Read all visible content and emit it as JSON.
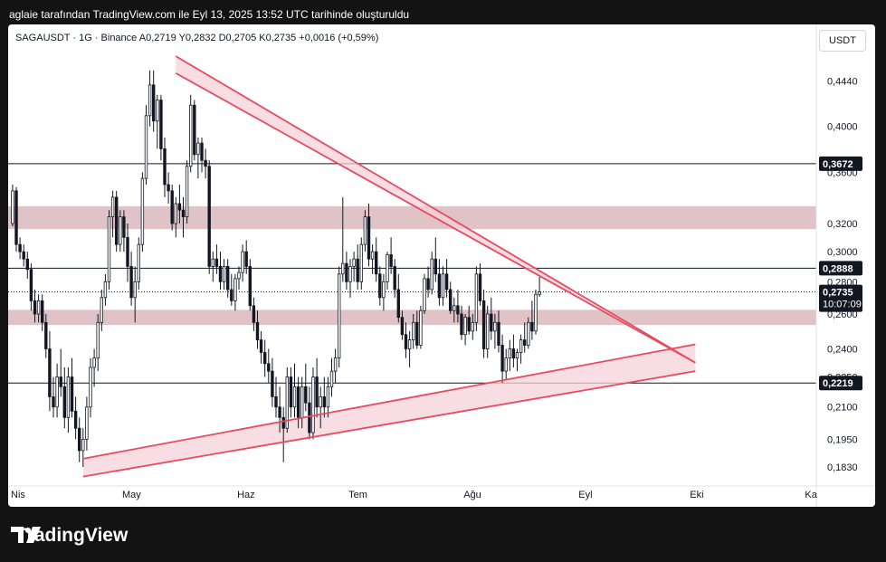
{
  "caption": "aglaie tarafından TradingView.com ile Eyl 13, 2025 13:52 UTC tarihinde oluşturuldu",
  "symbol_info": "SAGAUSDT · 1G · Binance   A0,2719   Y0,2832   D0,2705   K0,2735   +0,0016 (+0,59%)",
  "currency": "USDT",
  "brand": "TradingView",
  "colors": {
    "up": "#26a69a",
    "down": "#ef5350",
    "candle": "#131722",
    "zone_fill": "#d9b9bd",
    "triangle_line": "#e84a5f",
    "triangle_fill": "#f6d3d8",
    "level_line": "#131722"
  },
  "chart_data": {
    "type": "candlestick",
    "y_scale": "log",
    "ylim": [
      0.177,
      0.475
    ],
    "y_ticks": [
      "0,4440",
      "0,4000",
      "0,3600",
      "0,3200",
      "0,3000",
      "0,2800",
      "0,2600",
      "0,2400",
      "0,2250",
      "0,2100",
      "0,1950",
      "0,1830"
    ],
    "y_tick_values": [
      0.444,
      0.4,
      0.36,
      0.32,
      0.3,
      0.28,
      0.26,
      0.24,
      0.225,
      0.21,
      0.195,
      0.183
    ],
    "x_ticks": [
      "Nis",
      "May",
      "Haz",
      "Tem",
      "Ağu",
      "Eyl",
      "Eki",
      "Ka"
    ],
    "x_tick_days": [
      0,
      30,
      61,
      91,
      122,
      153,
      183,
      214
    ],
    "levels": [
      {
        "label": "0,3672",
        "value": 0.3672
      },
      {
        "label": "0,2888",
        "value": 0.2888
      },
      {
        "label": "0,2219",
        "value": 0.2219
      }
    ],
    "current_price": {
      "label": "0,2735",
      "value": 0.2735,
      "countdown": "10:07:09"
    },
    "zones": [
      {
        "low": 0.316,
        "high": 0.333
      },
      {
        "low": 0.2535,
        "high": 0.2625
      }
    ],
    "triangle": {
      "upper_top": [
        [
          43,
          0.47
        ],
        [
          183,
          0.2325
        ]
      ],
      "upper_bottom": [
        [
          43,
          0.452
        ],
        [
          183,
          0.2325
        ]
      ],
      "lower_top": [
        [
          18,
          0.1865
        ],
        [
          183,
          0.2425
        ]
      ],
      "lower_bottom": [
        [
          18,
          0.179
        ],
        [
          183,
          0.228
        ]
      ]
    },
    "candles": [
      [
        -1,
        0.32,
        0.35,
        0.318,
        0.345
      ],
      [
        0,
        0.345,
        0.348,
        0.3,
        0.305
      ],
      [
        1,
        0.305,
        0.31,
        0.295,
        0.3
      ],
      [
        2,
        0.3,
        0.305,
        0.29,
        0.295
      ],
      [
        3,
        0.295,
        0.3,
        0.282,
        0.288
      ],
      [
        4,
        0.288,
        0.292,
        0.262,
        0.268
      ],
      [
        5,
        0.268,
        0.275,
        0.255,
        0.26
      ],
      [
        6,
        0.26,
        0.272,
        0.255,
        0.268
      ],
      [
        7,
        0.268,
        0.272,
        0.25,
        0.255
      ],
      [
        8,
        0.255,
        0.26,
        0.235,
        0.24
      ],
      [
        9,
        0.24,
        0.25,
        0.208,
        0.215
      ],
      [
        10,
        0.215,
        0.225,
        0.205,
        0.21
      ],
      [
        11,
        0.21,
        0.232,
        0.205,
        0.225
      ],
      [
        12,
        0.225,
        0.24,
        0.215,
        0.22
      ],
      [
        13,
        0.22,
        0.23,
        0.2,
        0.205
      ],
      [
        14,
        0.205,
        0.23,
        0.198,
        0.225
      ],
      [
        15,
        0.225,
        0.235,
        0.205,
        0.208
      ],
      [
        16,
        0.208,
        0.215,
        0.195,
        0.2
      ],
      [
        17,
        0.2,
        0.205,
        0.185,
        0.19
      ],
      [
        18,
        0.19,
        0.2,
        0.183,
        0.195
      ],
      [
        19,
        0.195,
        0.215,
        0.19,
        0.21
      ],
      [
        20,
        0.21,
        0.235,
        0.205,
        0.23
      ],
      [
        21,
        0.23,
        0.24,
        0.22,
        0.235
      ],
      [
        22,
        0.235,
        0.26,
        0.228,
        0.255
      ],
      [
        23,
        0.255,
        0.275,
        0.25,
        0.27
      ],
      [
        24,
        0.27,
        0.285,
        0.265,
        0.28
      ],
      [
        25,
        0.28,
        0.33,
        0.275,
        0.325
      ],
      [
        26,
        0.325,
        0.345,
        0.31,
        0.34
      ],
      [
        27,
        0.34,
        0.345,
        0.3,
        0.305
      ],
      [
        28,
        0.305,
        0.33,
        0.3,
        0.325
      ],
      [
        29,
        0.325,
        0.33,
        0.3,
        0.31
      ],
      [
        30,
        0.31,
        0.32,
        0.28,
        0.29
      ],
      [
        31,
        0.29,
        0.3,
        0.265,
        0.27
      ],
      [
        32,
        0.27,
        0.29,
        0.255,
        0.28
      ],
      [
        33,
        0.28,
        0.31,
        0.275,
        0.305
      ],
      [
        34,
        0.305,
        0.36,
        0.3,
        0.355
      ],
      [
        35,
        0.355,
        0.42,
        0.35,
        0.41
      ],
      [
        36,
        0.41,
        0.455,
        0.4,
        0.44
      ],
      [
        37,
        0.44,
        0.455,
        0.395,
        0.405
      ],
      [
        38,
        0.405,
        0.43,
        0.38,
        0.425
      ],
      [
        39,
        0.425,
        0.43,
        0.37,
        0.38
      ],
      [
        40,
        0.38,
        0.39,
        0.34,
        0.35
      ],
      [
        41,
        0.35,
        0.36,
        0.335,
        0.345
      ],
      [
        42,
        0.345,
        0.35,
        0.315,
        0.32
      ],
      [
        43,
        0.32,
        0.34,
        0.31,
        0.335
      ],
      [
        44,
        0.335,
        0.35,
        0.32,
        0.33
      ],
      [
        45,
        0.33,
        0.34,
        0.31,
        0.325
      ],
      [
        46,
        0.325,
        0.37,
        0.32,
        0.365
      ],
      [
        47,
        0.365,
        0.43,
        0.36,
        0.42
      ],
      [
        48,
        0.42,
        0.425,
        0.37,
        0.375
      ],
      [
        49,
        0.375,
        0.39,
        0.355,
        0.385
      ],
      [
        50,
        0.385,
        0.39,
        0.36,
        0.37
      ],
      [
        51,
        0.37,
        0.38,
        0.355,
        0.365
      ],
      [
        52,
        0.365,
        0.37,
        0.285,
        0.29
      ],
      [
        53,
        0.29,
        0.3,
        0.28,
        0.295
      ],
      [
        54,
        0.295,
        0.305,
        0.285,
        0.29
      ],
      [
        55,
        0.29,
        0.3,
        0.275,
        0.28
      ],
      [
        56,
        0.28,
        0.295,
        0.275,
        0.29
      ],
      [
        57,
        0.29,
        0.295,
        0.27,
        0.275
      ],
      [
        58,
        0.275,
        0.285,
        0.265,
        0.268
      ],
      [
        59,
        0.268,
        0.285,
        0.262,
        0.282
      ],
      [
        60,
        0.282,
        0.29,
        0.275,
        0.286
      ],
      [
        61,
        0.286,
        0.305,
        0.28,
        0.3
      ],
      [
        62,
        0.3,
        0.308,
        0.285,
        0.29
      ],
      [
        63,
        0.29,
        0.295,
        0.262,
        0.265
      ],
      [
        64,
        0.265,
        0.27,
        0.25,
        0.255
      ],
      [
        65,
        0.255,
        0.262,
        0.24,
        0.245
      ],
      [
        66,
        0.245,
        0.25,
        0.232,
        0.238
      ],
      [
        67,
        0.238,
        0.245,
        0.225,
        0.232
      ],
      [
        68,
        0.232,
        0.24,
        0.222,
        0.228
      ],
      [
        69,
        0.228,
        0.235,
        0.21,
        0.215
      ],
      [
        70,
        0.215,
        0.225,
        0.205,
        0.21
      ],
      [
        71,
        0.21,
        0.22,
        0.198,
        0.205
      ],
      [
        72,
        0.205,
        0.21,
        0.185,
        0.2
      ],
      [
        73,
        0.2,
        0.23,
        0.198,
        0.225
      ],
      [
        74,
        0.225,
        0.23,
        0.205,
        0.21
      ],
      [
        75,
        0.21,
        0.232,
        0.205,
        0.22
      ],
      [
        76,
        0.22,
        0.225,
        0.2,
        0.205
      ],
      [
        77,
        0.205,
        0.225,
        0.2,
        0.22
      ],
      [
        78,
        0.22,
        0.232,
        0.208,
        0.212
      ],
      [
        79,
        0.212,
        0.22,
        0.195,
        0.198
      ],
      [
        80,
        0.198,
        0.23,
        0.195,
        0.225
      ],
      [
        81,
        0.225,
        0.235,
        0.205,
        0.21
      ],
      [
        82,
        0.21,
        0.22,
        0.2,
        0.215
      ],
      [
        83,
        0.215,
        0.225,
        0.205,
        0.21
      ],
      [
        84,
        0.21,
        0.225,
        0.205,
        0.22
      ],
      [
        85,
        0.22,
        0.235,
        0.215,
        0.228
      ],
      [
        86,
        0.228,
        0.24,
        0.222,
        0.235
      ],
      [
        87,
        0.235,
        0.29,
        0.23,
        0.285
      ],
      [
        88,
        0.285,
        0.34,
        0.28,
        0.292
      ],
      [
        89,
        0.292,
        0.3,
        0.275,
        0.28
      ],
      [
        90,
        0.28,
        0.295,
        0.27,
        0.29
      ],
      [
        91,
        0.29,
        0.3,
        0.28,
        0.295
      ],
      [
        92,
        0.295,
        0.305,
        0.275,
        0.28
      ],
      [
        93,
        0.28,
        0.31,
        0.275,
        0.305
      ],
      [
        94,
        0.305,
        0.33,
        0.3,
        0.325
      ],
      [
        95,
        0.325,
        0.335,
        0.29,
        0.295
      ],
      [
        96,
        0.295,
        0.305,
        0.285,
        0.3
      ],
      [
        97,
        0.3,
        0.31,
        0.28,
        0.285
      ],
      [
        98,
        0.285,
        0.29,
        0.265,
        0.27
      ],
      [
        99,
        0.27,
        0.285,
        0.262,
        0.28
      ],
      [
        100,
        0.28,
        0.3,
        0.275,
        0.298
      ],
      [
        101,
        0.298,
        0.31,
        0.285,
        0.29
      ],
      [
        102,
        0.29,
        0.295,
        0.27,
        0.275
      ],
      [
        103,
        0.275,
        0.285,
        0.255,
        0.258
      ],
      [
        104,
        0.258,
        0.262,
        0.245,
        0.248
      ],
      [
        105,
        0.248,
        0.255,
        0.235,
        0.24
      ],
      [
        106,
        0.24,
        0.25,
        0.23,
        0.245
      ],
      [
        107,
        0.245,
        0.26,
        0.24,
        0.255
      ],
      [
        108,
        0.255,
        0.262,
        0.24,
        0.242
      ],
      [
        109,
        0.242,
        0.265,
        0.24,
        0.262
      ],
      [
        110,
        0.262,
        0.285,
        0.26,
        0.282
      ],
      [
        111,
        0.282,
        0.29,
        0.27,
        0.275
      ],
      [
        112,
        0.275,
        0.3,
        0.272,
        0.295
      ],
      [
        113,
        0.295,
        0.31,
        0.28,
        0.285
      ],
      [
        114,
        0.285,
        0.295,
        0.265,
        0.27
      ],
      [
        115,
        0.27,
        0.29,
        0.265,
        0.285
      ],
      [
        116,
        0.285,
        0.295,
        0.27,
        0.275
      ],
      [
        117,
        0.275,
        0.28,
        0.26,
        0.262
      ],
      [
        118,
        0.262,
        0.27,
        0.255,
        0.265
      ],
      [
        119,
        0.265,
        0.275,
        0.255,
        0.26
      ],
      [
        120,
        0.26,
        0.265,
        0.245,
        0.248
      ],
      [
        121,
        0.248,
        0.26,
        0.242,
        0.258
      ],
      [
        122,
        0.258,
        0.265,
        0.248,
        0.25
      ],
      [
        123,
        0.25,
        0.26,
        0.245,
        0.255
      ],
      [
        124,
        0.255,
        0.29,
        0.25,
        0.285
      ],
      [
        125,
        0.285,
        0.292,
        0.265,
        0.268
      ],
      [
        126,
        0.268,
        0.275,
        0.235,
        0.24
      ],
      [
        127,
        0.24,
        0.265,
        0.235,
        0.26
      ],
      [
        128,
        0.26,
        0.27,
        0.245,
        0.25
      ],
      [
        129,
        0.25,
        0.26,
        0.24,
        0.255
      ],
      [
        130,
        0.255,
        0.262,
        0.238,
        0.242
      ],
      [
        131,
        0.242,
        0.248,
        0.222,
        0.228
      ],
      [
        132,
        0.228,
        0.24,
        0.224,
        0.235
      ],
      [
        133,
        0.235,
        0.245,
        0.228,
        0.24
      ],
      [
        134,
        0.24,
        0.248,
        0.23,
        0.235
      ],
      [
        135,
        0.235,
        0.24,
        0.228,
        0.238
      ],
      [
        136,
        0.238,
        0.248,
        0.232,
        0.245
      ],
      [
        137,
        0.245,
        0.255,
        0.238,
        0.242
      ],
      [
        138,
        0.242,
        0.258,
        0.24,
        0.255
      ],
      [
        139,
        0.255,
        0.268,
        0.245,
        0.25
      ],
      [
        140,
        0.25,
        0.275,
        0.248,
        0.272
      ],
      [
        141,
        0.272,
        0.2832,
        0.2705,
        0.2735
      ]
    ]
  }
}
